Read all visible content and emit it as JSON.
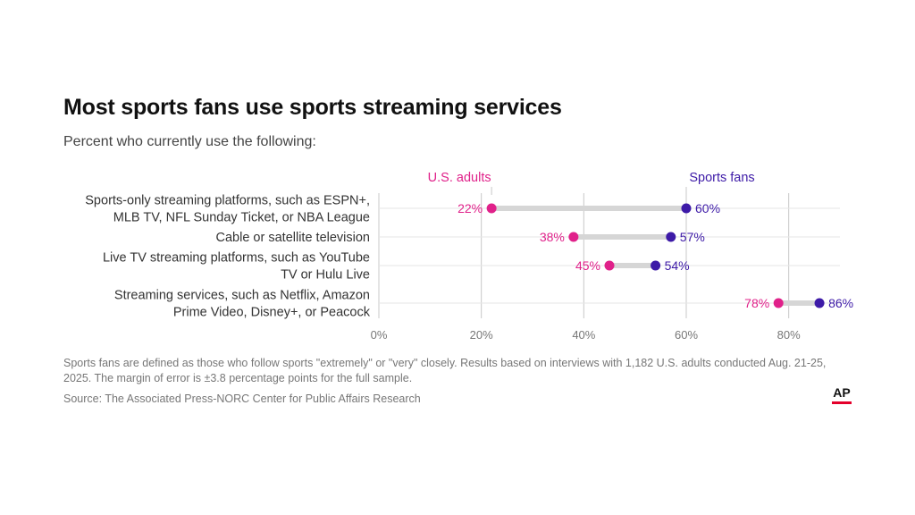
{
  "title": "Most sports fans use sports streaming services",
  "subtitle": "Percent who currently use the following:",
  "footnote": "Sports fans are defined as those who follow sports \"extremely\" or \"very\" closely. Results based on interviews with 1,182 U.S. adults conducted Aug. 21-25, 2025. The margin of error is ±3.8 percentage points for the full sample.",
  "source": "Source: The Associated Press-NORC Center for Public Affairs Research",
  "logo": "AP",
  "colors": {
    "us_adults": "#e0218a",
    "sports_fans": "#3d1aa7",
    "connector": "#d6d6d6",
    "grid": "#c8c8c8"
  },
  "chart_data": {
    "type": "dot-plot",
    "categories": [
      [
        "Sports-only streaming platforms, such as ESPN+,",
        "MLB TV, NFL Sunday Ticket, or NBA League"
      ],
      [
        "Cable or satellite television"
      ],
      [
        "Live TV streaming platforms, such as YouTube",
        "TV or Hulu Live"
      ],
      [
        "Streaming services, such as Netflix, Amazon",
        "Prime Video, Disney+, or Peacock"
      ]
    ],
    "series": [
      {
        "name": "U.S. adults",
        "values": [
          22,
          38,
          45,
          78
        ]
      },
      {
        "name": "Sports fans",
        "values": [
          60,
          57,
          54,
          86
        ]
      }
    ],
    "xlim": [
      0,
      90
    ],
    "xticks": [
      0,
      20,
      40,
      60,
      80
    ],
    "tick_suffix": "%",
    "grid": true,
    "legend": "labels above first row"
  }
}
